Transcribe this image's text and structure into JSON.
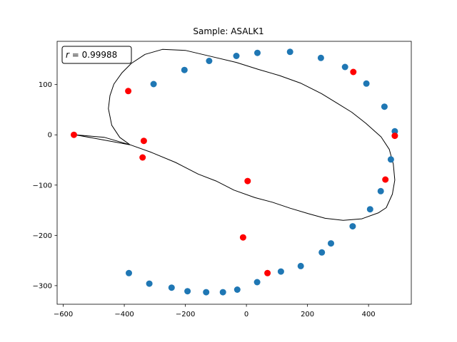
{
  "chart_data": {
    "type": "scatter",
    "title": "Sample: ASALK1",
    "xlabel": "",
    "ylabel": "",
    "xlim": [
      -620,
      540
    ],
    "ylim": [
      -337,
      186
    ],
    "xticks": [
      -600,
      -400,
      -200,
      0,
      200,
      400
    ],
    "yticks": [
      -300,
      -200,
      -100,
      0,
      100
    ],
    "grid": false,
    "annotation": {
      "prefix": "r",
      "text": " = 0.99988",
      "placement": "top-left"
    },
    "fitted_ellipse": {
      "color": "#000000",
      "points": [
        [
          -560,
          0
        ],
        [
          -465,
          -5
        ],
        [
          -380,
          -20
        ],
        [
          -311,
          -35
        ],
        [
          -232,
          -55
        ],
        [
          -158,
          -78
        ],
        [
          -99,
          -92
        ],
        [
          -41,
          -110
        ],
        [
          28,
          -125
        ],
        [
          85,
          -134
        ],
        [
          143,
          -146
        ],
        [
          204,
          -157
        ],
        [
          258,
          -166
        ],
        [
          317,
          -170
        ],
        [
          378,
          -167
        ],
        [
          433,
          -155
        ],
        [
          458,
          -145
        ],
        [
          478,
          -118
        ],
        [
          486,
          -90
        ],
        [
          481,
          -58
        ],
        [
          468,
          -29
        ],
        [
          441,
          -4
        ],
        [
          391,
          23
        ],
        [
          345,
          45
        ],
        [
          297,
          63
        ],
        [
          246,
          82
        ],
        [
          177,
          103
        ],
        [
          108,
          118
        ],
        [
          40,
          130
        ],
        [
          -33,
          144
        ],
        [
          -116,
          156
        ],
        [
          -200,
          168
        ],
        [
          -275,
          170
        ],
        [
          -332,
          160
        ],
        [
          -377,
          142
        ],
        [
          -408,
          123
        ],
        [
          -434,
          101
        ],
        [
          -447,
          78
        ],
        [
          -452,
          52
        ],
        [
          -441,
          19
        ],
        [
          -415,
          -5
        ],
        [
          -381,
          -20
        ]
      ]
    },
    "series": [
      {
        "color": "#1f77b4",
        "x": [
          -385,
          -318,
          -245,
          -193,
          -132,
          -77,
          -30,
          35,
          113,
          178,
          247,
          277,
          348,
          405,
          440,
          473,
          486,
          452,
          393,
          323,
          244,
          143,
          36,
          -33,
          -122,
          -203,
          -304
        ],
        "y": [
          -275,
          -296,
          -304,
          -311,
          -313,
          -313,
          -308,
          -293,
          -272,
          -261,
          -234,
          -216,
          -182,
          -148,
          -112,
          -49,
          7,
          56,
          102,
          135,
          153,
          165,
          163,
          157,
          147,
          129,
          101
        ]
      },
      {
        "color": "#ff0000",
        "x": [
          -565,
          -387,
          -336,
          -340,
          4,
          -11,
          69,
          350,
          486,
          455
        ],
        "y": [
          0,
          87,
          -12,
          -45,
          -92,
          -204,
          -275,
          125,
          -2,
          -89
        ]
      }
    ]
  }
}
